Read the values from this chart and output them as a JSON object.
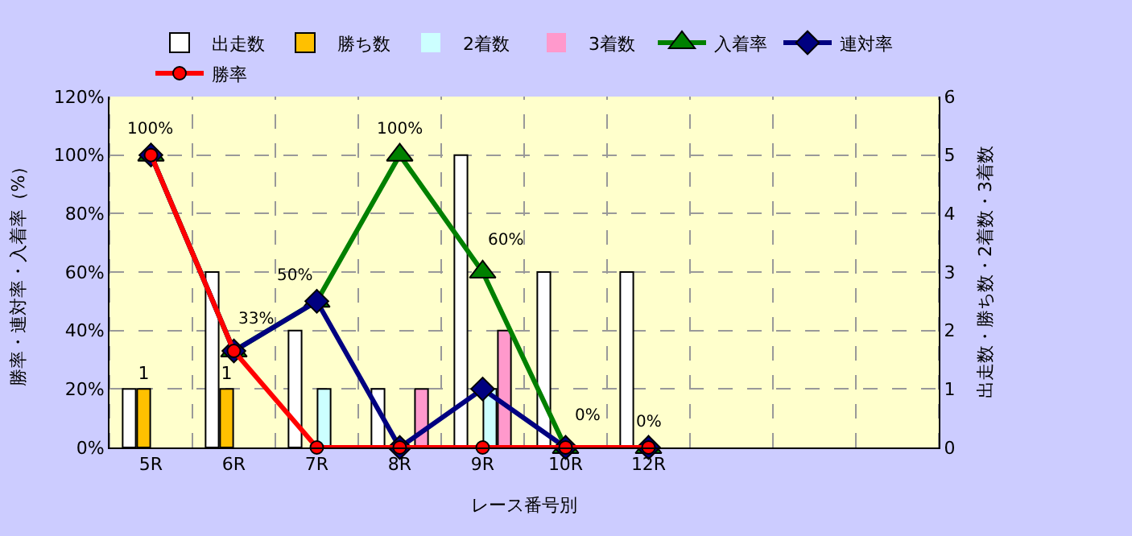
{
  "chart_data": {
    "type": "bar",
    "xlabel": "レース番号別",
    "ylabel": "勝率・連対率・入着率（%）",
    "y2label": "出走数・勝ち数・2着数・3着数",
    "categories": [
      "5R",
      "6R",
      "7R",
      "8R",
      "9R",
      "10R",
      "12R",
      null,
      null,
      null
    ],
    "series": [
      {
        "name": "出走数",
        "axis": "y2",
        "color": "#ffffff",
        "values": [
          1,
          3,
          2,
          1,
          5,
          3,
          3,
          null,
          null,
          null
        ]
      },
      {
        "name": "勝ち数",
        "axis": "y2",
        "color": "#ffc000",
        "values": [
          1,
          1,
          0,
          0,
          0,
          0,
          0,
          null,
          null,
          null
        ],
        "value_labels": [
          "1",
          "1",
          null,
          null,
          null,
          null,
          null,
          null,
          null,
          null
        ]
      },
      {
        "name": "2着数",
        "axis": "y2",
        "color": "#ccffff",
        "values": [
          0,
          0,
          1,
          0,
          1,
          0,
          0,
          null,
          null,
          null
        ]
      },
      {
        "name": "3着数",
        "axis": "y2",
        "color": "#ff99cc",
        "values": [
          0,
          0,
          0,
          1,
          2,
          0,
          0,
          null,
          null,
          null
        ]
      },
      {
        "name": "入着率",
        "type": "line",
        "axis": "y",
        "color": "#008000",
        "marker": "triangle",
        "values": [
          100,
          33,
          50,
          100,
          60,
          0,
          0,
          null,
          null,
          null
        ],
        "value_labels": [
          "100%",
          "33%",
          "50%",
          "100%",
          "60%",
          "0%",
          "0%",
          null,
          null,
          null
        ]
      },
      {
        "name": "連対率",
        "type": "line",
        "axis": "y",
        "color": "#000080",
        "marker": "diamond",
        "values": [
          100,
          33,
          50,
          0,
          20,
          0,
          0,
          null,
          null,
          null
        ]
      },
      {
        "name": "勝率",
        "type": "line",
        "axis": "y",
        "color": "#ff0000",
        "marker": "circle",
        "values": [
          100,
          33,
          0,
          0,
          0,
          0,
          0,
          null,
          null,
          null
        ]
      }
    ],
    "ylim": [
      0,
      120
    ],
    "yticks": [
      {
        "value": 0,
        "label": "0%"
      },
      {
        "value": 20,
        "label": "20%"
      },
      {
        "value": 40,
        "label": "40%"
      },
      {
        "value": 60,
        "label": "60%"
      },
      {
        "value": 80,
        "label": "80%"
      },
      {
        "value": 100,
        "label": "100%"
      },
      {
        "value": 120,
        "label": "120%"
      }
    ],
    "y2lim": [
      0,
      6
    ],
    "y2ticks": [
      0,
      1,
      2,
      3,
      4,
      5,
      6
    ],
    "grid": true,
    "legend": "top"
  }
}
